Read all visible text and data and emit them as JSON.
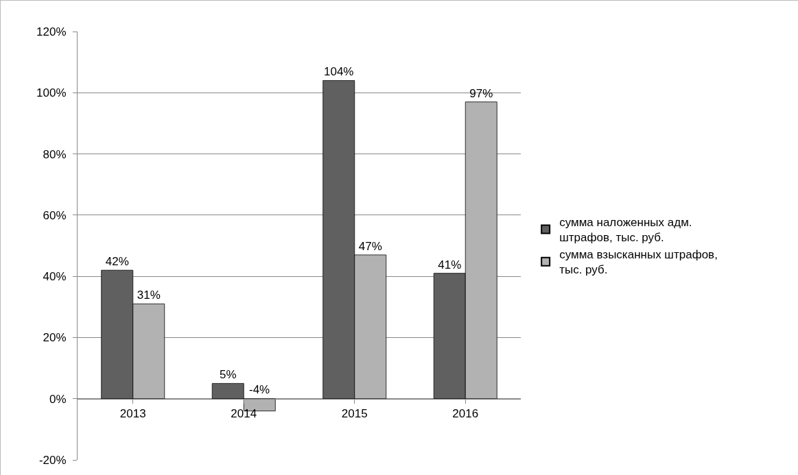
{
  "chart_data": {
    "type": "bar",
    "categories": [
      "2013",
      "2014",
      "2015",
      "2016"
    ],
    "series": [
      {
        "name": "сумма наложенных адм. штрафов, тыс. руб.",
        "color": "#606060",
        "values": [
          42,
          5,
          104,
          41
        ],
        "value_labels": [
          "42%",
          "5%",
          "104%",
          "41%"
        ]
      },
      {
        "name": "сумма взысканных штрафов, тыс. руб.",
        "color": "#b2b2b2",
        "values": [
          31,
          -4,
          47,
          97
        ],
        "value_labels": [
          "31%",
          "-4%",
          "47%",
          "97%"
        ]
      }
    ],
    "ylim": [
      -20,
      120
    ],
    "yticks": [
      {
        "value": -20,
        "label": "-20%"
      },
      {
        "value": 0,
        "label": "0%"
      },
      {
        "value": 20,
        "label": "20%"
      },
      {
        "value": 40,
        "label": "40%"
      },
      {
        "value": 60,
        "label": "60%"
      },
      {
        "value": 80,
        "label": "80%"
      },
      {
        "value": 100,
        "label": "100%"
      },
      {
        "value": 120,
        "label": "120%"
      }
    ],
    "grid": "y",
    "legend": "right"
  }
}
